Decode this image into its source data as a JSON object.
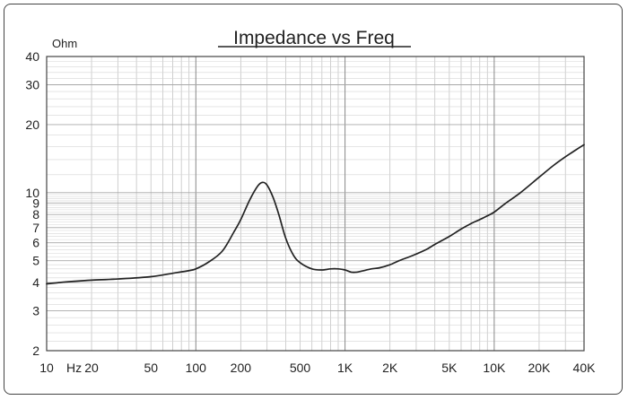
{
  "chart_data": {
    "type": "line",
    "title": "Impedance vs Freq",
    "ylabel": "Ohm",
    "xlabel": "",
    "x_scale": "log",
    "y_scale": "log",
    "xlim": [
      10,
      40000
    ],
    "ylim": [
      2,
      40
    ],
    "grid": true,
    "x_ticks": [
      "10",
      "Hz",
      "20",
      "50",
      "100",
      "200",
      "500",
      "1K",
      "2K",
      "5K",
      "10K",
      "20K",
      "40K"
    ],
    "y_ticks": [
      "40",
      "30",
      "20",
      "10",
      "9",
      "8",
      "7",
      "6",
      "5",
      "4",
      "3",
      "2"
    ],
    "series": [
      {
        "color": "#222222",
        "x": [
          10,
          12,
          15,
          20,
          30,
          50,
          70,
          90,
          100,
          120,
          150,
          180,
          200,
          230,
          260,
          280,
          300,
          330,
          360,
          400,
          450,
          500,
          600,
          700,
          800,
          900,
          1000,
          1100,
          1200,
          1300,
          1500,
          1700,
          2000,
          2300,
          2700,
          3000,
          3500,
          4000,
          5000,
          6000,
          7000,
          8000,
          9000,
          10000,
          12000,
          15000,
          20000,
          25000,
          30000,
          35000,
          40000
        ],
        "values": [
          3.95,
          4.0,
          4.05,
          4.1,
          4.15,
          4.25,
          4.4,
          4.52,
          4.6,
          4.9,
          5.5,
          6.7,
          7.6,
          9.3,
          10.7,
          11.1,
          10.8,
          9.5,
          8.0,
          6.3,
          5.3,
          4.9,
          4.6,
          4.55,
          4.6,
          4.6,
          4.55,
          4.45,
          4.45,
          4.5,
          4.6,
          4.65,
          4.8,
          5.0,
          5.2,
          5.35,
          5.6,
          5.9,
          6.4,
          6.9,
          7.3,
          7.6,
          7.9,
          8.2,
          9.0,
          10.0,
          11.7,
          13.2,
          14.4,
          15.4,
          16.3
        ]
      }
    ]
  }
}
